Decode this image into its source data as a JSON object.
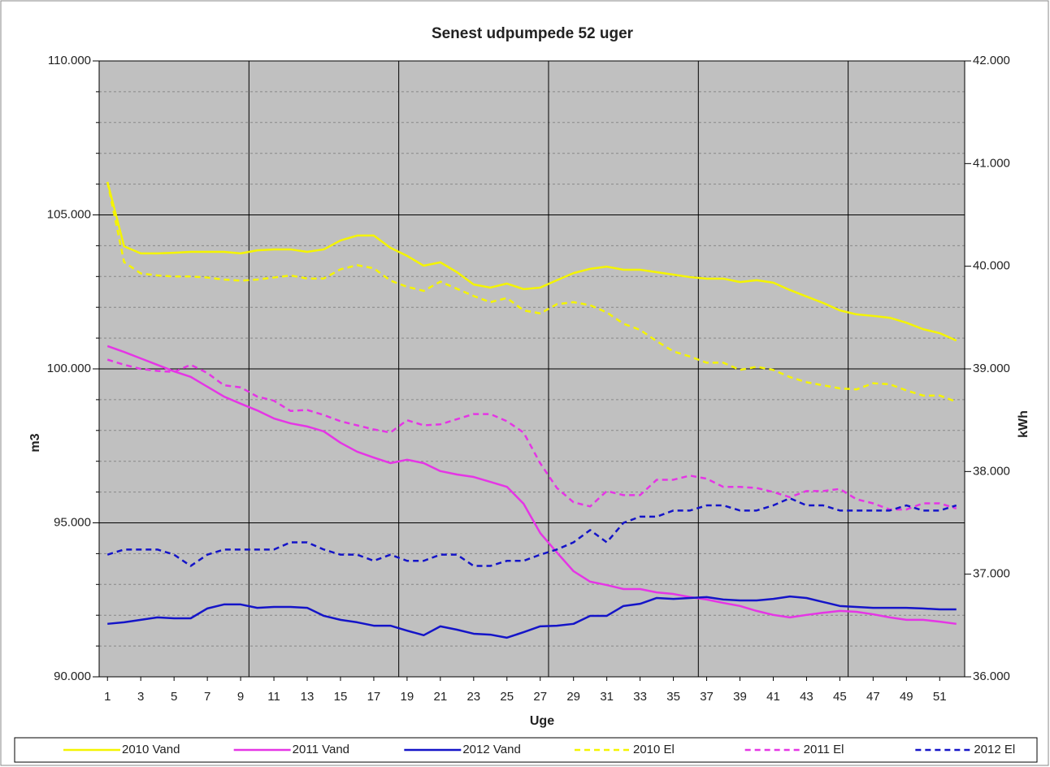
{
  "chart_data": {
    "type": "line",
    "title": "Senest udpumpede 52 uger",
    "x_label": "Uge",
    "y_label": "m3",
    "y2_label": "kWh",
    "x": [
      1,
      2,
      3,
      4,
      5,
      6,
      7,
      8,
      9,
      10,
      11,
      12,
      13,
      14,
      15,
      16,
      17,
      18,
      19,
      20,
      21,
      22,
      23,
      24,
      25,
      26,
      27,
      28,
      29,
      30,
      31,
      32,
      33,
      34,
      35,
      36,
      37,
      38,
      39,
      40,
      41,
      42,
      43,
      44,
      45,
      46,
      47,
      48,
      49,
      50,
      51,
      52
    ],
    "xlim": [
      0.5,
      52.5
    ],
    "xticks": [
      1,
      3,
      5,
      7,
      9,
      11,
      13,
      15,
      17,
      19,
      21,
      23,
      25,
      27,
      29,
      31,
      33,
      35,
      37,
      39,
      41,
      43,
      45,
      47,
      49,
      51
    ],
    "xgrid": [
      9.5,
      18.5,
      27.5,
      36.5,
      45.5
    ],
    "ylim": [
      90000,
      110000
    ],
    "yticks": [
      {
        "value": 90000,
        "label": "90.000"
      },
      {
        "value": 95000,
        "label": "95.000"
      },
      {
        "value": 100000,
        "label": "100.000"
      },
      {
        "value": 105000,
        "label": "105.000"
      },
      {
        "value": 110000,
        "label": "110.000"
      }
    ],
    "y_minor_step": 1000,
    "y2lim": [
      36000,
      42000
    ],
    "y2ticks": [
      {
        "value": 36000,
        "label": "36.000"
      },
      {
        "value": 37000,
        "label": "37.000"
      },
      {
        "value": 38000,
        "label": "38.000"
      },
      {
        "value": 39000,
        "label": "39.000"
      },
      {
        "value": 40000,
        "label": "40.000"
      },
      {
        "value": 41000,
        "label": "41.000"
      },
      {
        "value": 42000,
        "label": "42.000"
      }
    ],
    "grid": true,
    "legend": "bottom",
    "series": [
      {
        "name": "2010 Vand",
        "color": "#f4f400",
        "dashed": false,
        "values": [
          106070,
          103980,
          103750,
          103750,
          103770,
          103800,
          103800,
          103800,
          103750,
          103850,
          103880,
          103880,
          103800,
          103880,
          104170,
          104330,
          104330,
          103930,
          103670,
          103350,
          103460,
          103140,
          102740,
          102640,
          102770,
          102590,
          102640,
          102880,
          103110,
          103250,
          103320,
          103220,
          103220,
          103140,
          103060,
          102980,
          102930,
          102930,
          102820,
          102880,
          102800,
          102560,
          102350,
          102140,
          101900,
          101770,
          101720,
          101660,
          101500,
          101290,
          101160,
          100920
        ]
      },
      {
        "name": "2011 Vand",
        "color": "#e535e5",
        "dashed": false,
        "values": [
          100740,
          100550,
          100340,
          100130,
          99920,
          99740,
          99420,
          99100,
          98870,
          98650,
          98390,
          98230,
          98130,
          97970,
          97600,
          97310,
          97120,
          96940,
          97050,
          96940,
          96680,
          96570,
          96490,
          96330,
          96170,
          95620,
          94670,
          94040,
          93430,
          93090,
          92980,
          92850,
          92850,
          92740,
          92690,
          92590,
          92510,
          92400,
          92300,
          92140,
          92010,
          91930,
          92010,
          92080,
          92140,
          92110,
          92030,
          91930,
          91850,
          91850,
          91790,
          91720
        ]
      },
      {
        "name": "2012 Vand",
        "color": "#1414c8",
        "dashed": false,
        "values": [
          91720,
          91770,
          91850,
          91930,
          91900,
          91900,
          92220,
          92350,
          92350,
          92240,
          92270,
          92270,
          92240,
          91980,
          91850,
          91770,
          91660,
          91660,
          91500,
          91350,
          91640,
          91530,
          91400,
          91370,
          91270,
          91450,
          91640,
          91660,
          91720,
          91980,
          91980,
          92300,
          92370,
          92560,
          92530,
          92560,
          92590,
          92510,
          92480,
          92480,
          92530,
          92610,
          92560,
          92430,
          92300,
          92270,
          92240,
          92240,
          92240,
          92220,
          92190,
          92190
        ]
      },
      {
        "name": "2010 El",
        "color": "#f4f400",
        "dashed": true,
        "axis": "y2",
        "values": [
          40820,
          40040,
          39930,
          39910,
          39900,
          39900,
          39890,
          39870,
          39860,
          39870,
          39890,
          39910,
          39880,
          39880,
          39970,
          40010,
          39980,
          39860,
          39800,
          39760,
          39850,
          39780,
          39710,
          39650,
          39690,
          39570,
          39540,
          39630,
          39650,
          39620,
          39550,
          39440,
          39380,
          39270,
          39170,
          39120,
          39060,
          39060,
          38990,
          39020,
          38990,
          38920,
          38870,
          38840,
          38810,
          38800,
          38860,
          38850,
          38790,
          38740,
          38740,
          38680
        ]
      },
      {
        "name": "2011 El",
        "color": "#e535e5",
        "dashed": true,
        "axis": "y2",
        "values": [
          39090,
          39040,
          39000,
          38980,
          38970,
          39040,
          38960,
          38840,
          38820,
          38730,
          38690,
          38590,
          38600,
          38550,
          38490,
          38450,
          38410,
          38380,
          38500,
          38450,
          38460,
          38510,
          38560,
          38560,
          38490,
          38380,
          38080,
          37840,
          37700,
          37660,
          37810,
          37770,
          37770,
          37920,
          37920,
          37960,
          37930,
          37850,
          37850,
          37840,
          37800,
          37750,
          37810,
          37810,
          37830,
          37730,
          37690,
          37630,
          37630,
          37690,
          37690,
          37640
        ]
      },
      {
        "name": "2012 El",
        "color": "#1414c8",
        "dashed": true,
        "axis": "y2",
        "values": [
          37190,
          37240,
          37240,
          37240,
          37190,
          37080,
          37190,
          37240,
          37240,
          37240,
          37240,
          37310,
          37310,
          37240,
          37190,
          37190,
          37130,
          37190,
          37130,
          37130,
          37190,
          37190,
          37080,
          37080,
          37130,
          37130,
          37190,
          37240,
          37310,
          37430,
          37310,
          37500,
          37560,
          37560,
          37620,
          37620,
          37670,
          37670,
          37620,
          37620,
          37670,
          37740,
          37670,
          37670,
          37620,
          37620,
          37620,
          37620,
          37670,
          37620,
          37620,
          37670
        ]
      }
    ]
  }
}
